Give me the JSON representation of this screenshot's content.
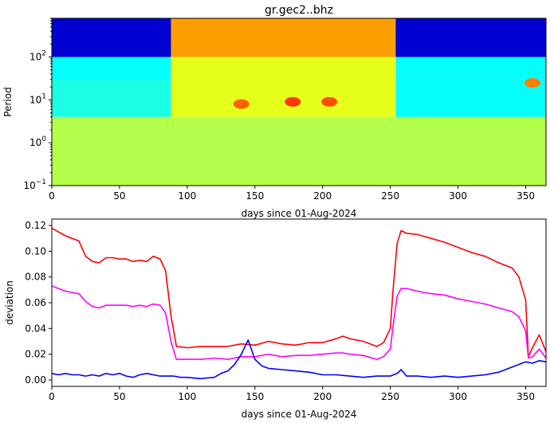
{
  "chart_data": [
    {
      "type": "heatmap",
      "title": "gr.gec2..bhz",
      "xlabel": "days since 01-Aug-2024",
      "ylabel": "Period",
      "xlim": [
        0,
        365
      ],
      "ylim": [
        0.1,
        800
      ],
      "yscale": "log",
      "x_ticks": [
        0,
        50,
        100,
        150,
        200,
        250,
        300,
        350
      ],
      "x_tick_labels": [
        "0",
        "50",
        "100",
        "150",
        "200",
        "250",
        "300",
        "350"
      ],
      "y_ticks": [
        0.1,
        1,
        10,
        100
      ],
      "y_tick_labels": [
        [
          "10",
          "−1"
        ],
        [
          "10",
          "0"
        ],
        [
          "10",
          "1"
        ],
        [
          "10",
          "2"
        ]
      ],
      "colormap": "jet",
      "bands": [
        {
          "period_min": 100,
          "period_max": 800,
          "x_breaks": [
            0,
            88,
            254,
            365
          ],
          "values": [
            0.08,
            0.72,
            0.08
          ]
        },
        {
          "period_min": 30,
          "period_max": 100,
          "x_breaks": [
            0,
            88,
            254,
            365
          ],
          "values": [
            0.38,
            0.6,
            0.38
          ]
        },
        {
          "period_min": 4,
          "period_max": 30,
          "x_breaks": [
            0,
            88,
            254,
            365
          ],
          "values": [
            0.4,
            0.6,
            0.38
          ]
        },
        {
          "period_min": 0.1,
          "period_max": 4,
          "x_breaks": [
            0,
            365
          ],
          "values": [
            0.55
          ]
        }
      ],
      "hotspots": [
        {
          "x": 140,
          "period": 8,
          "value": 0.78
        },
        {
          "x": 178,
          "period": 9,
          "value": 0.82
        },
        {
          "x": 205,
          "period": 9,
          "value": 0.8
        },
        {
          "x": 355,
          "period": 25,
          "value": 0.75
        }
      ]
    },
    {
      "type": "line",
      "xlabel": "days since 01-Aug-2024",
      "ylabel": "deviation",
      "xlim": [
        0,
        365
      ],
      "ylim": [
        -0.005,
        0.125
      ],
      "x_ticks": [
        0,
        50,
        100,
        150,
        200,
        250,
        300,
        350
      ],
      "y_ticks": [
        0.0,
        0.02,
        0.04,
        0.06,
        0.08,
        0.1,
        0.12
      ],
      "y_tick_labels": [
        "0.00",
        "0.02",
        "0.04",
        "0.06",
        "0.08",
        "0.10",
        "0.12"
      ],
      "series": [
        {
          "color": "#ff0000",
          "x": [
            0,
            5,
            10,
            20,
            25,
            30,
            35,
            40,
            45,
            50,
            55,
            60,
            65,
            70,
            75,
            80,
            84,
            88,
            92,
            100,
            110,
            120,
            130,
            140,
            150,
            160,
            170,
            180,
            190,
            200,
            210,
            215,
            220,
            230,
            240,
            245,
            250,
            252,
            255,
            258,
            262,
            270,
            280,
            290,
            300,
            310,
            320,
            330,
            340,
            345,
            350,
            352,
            355,
            360,
            365
          ],
          "y": [
            0.118,
            0.115,
            0.112,
            0.108,
            0.096,
            0.092,
            0.091,
            0.095,
            0.095,
            0.094,
            0.094,
            0.092,
            0.093,
            0.092,
            0.096,
            0.094,
            0.085,
            0.05,
            0.026,
            0.025,
            0.026,
            0.026,
            0.026,
            0.028,
            0.027,
            0.03,
            0.028,
            0.027,
            0.029,
            0.029,
            0.032,
            0.034,
            0.032,
            0.03,
            0.026,
            0.029,
            0.04,
            0.07,
            0.106,
            0.116,
            0.114,
            0.113,
            0.11,
            0.107,
            0.103,
            0.099,
            0.096,
            0.091,
            0.087,
            0.08,
            0.062,
            0.018,
            0.025,
            0.035,
            0.022
          ]
        },
        {
          "color": "#ff00ff",
          "x": [
            0,
            5,
            10,
            20,
            25,
            30,
            35,
            40,
            45,
            50,
            55,
            60,
            65,
            70,
            75,
            80,
            84,
            88,
            92,
            100,
            110,
            120,
            130,
            140,
            150,
            160,
            170,
            180,
            190,
            200,
            210,
            215,
            220,
            230,
            240,
            245,
            250,
            252,
            255,
            258,
            262,
            270,
            280,
            290,
            300,
            310,
            320,
            330,
            340,
            345,
            350,
            352,
            355,
            360,
            365
          ],
          "y": [
            0.073,
            0.071,
            0.069,
            0.067,
            0.061,
            0.057,
            0.056,
            0.058,
            0.058,
            0.058,
            0.058,
            0.057,
            0.058,
            0.057,
            0.059,
            0.058,
            0.052,
            0.03,
            0.016,
            0.016,
            0.016,
            0.017,
            0.016,
            0.018,
            0.018,
            0.02,
            0.018,
            0.019,
            0.019,
            0.02,
            0.021,
            0.021,
            0.02,
            0.019,
            0.016,
            0.018,
            0.024,
            0.042,
            0.065,
            0.071,
            0.071,
            0.069,
            0.067,
            0.066,
            0.063,
            0.061,
            0.059,
            0.056,
            0.053,
            0.049,
            0.038,
            0.017,
            0.018,
            0.024,
            0.017
          ]
        },
        {
          "color": "#0000ff",
          "x": [
            0,
            5,
            10,
            15,
            20,
            25,
            30,
            35,
            40,
            45,
            50,
            55,
            60,
            65,
            70,
            75,
            80,
            85,
            90,
            95,
            100,
            110,
            120,
            125,
            130,
            135,
            140,
            145,
            150,
            155,
            160,
            170,
            180,
            190,
            200,
            210,
            220,
            230,
            240,
            250,
            255,
            258,
            262,
            270,
            280,
            290,
            300,
            310,
            320,
            330,
            335,
            340,
            345,
            350,
            355,
            360,
            365
          ],
          "y": [
            0.005,
            0.004,
            0.005,
            0.004,
            0.004,
            0.003,
            0.004,
            0.003,
            0.005,
            0.004,
            0.005,
            0.003,
            0.002,
            0.004,
            0.005,
            0.004,
            0.003,
            0.003,
            0.003,
            0.002,
            0.002,
            0.001,
            0.002,
            0.005,
            0.007,
            0.012,
            0.02,
            0.031,
            0.016,
            0.011,
            0.009,
            0.008,
            0.007,
            0.006,
            0.004,
            0.004,
            0.003,
            0.002,
            0.003,
            0.003,
            0.005,
            0.008,
            0.003,
            0.003,
            0.002,
            0.003,
            0.002,
            0.003,
            0.004,
            0.006,
            0.008,
            0.01,
            0.012,
            0.014,
            0.013,
            0.015,
            0.014
          ]
        }
      ]
    }
  ]
}
